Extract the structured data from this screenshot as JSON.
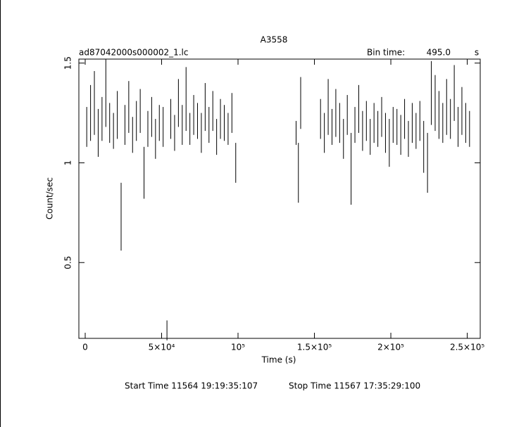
{
  "chart_data": {
    "type": "errorbar",
    "title": "A3558",
    "file_label": "ad87042000s000002_1.lc",
    "bin_time_label": "Bin time:",
    "bin_time": "495.0",
    "bin_time_unit": "s",
    "xlabel": "Time (s)",
    "ylabel": "Count/sec",
    "start_time": "Start Time 11564 19:19:35:107",
    "stop_time": "Stop Time 11567 17:35:29:100",
    "color": "#000000",
    "xlim": [
      -4150,
      258500
    ],
    "ylim": [
      0.12,
      1.52
    ],
    "xticks": [
      0,
      {
        "value": 50000,
        "label": "5×10⁴"
      },
      {
        "value": 100000,
        "label": "10⁵"
      },
      {
        "value": 150000,
        "label": "1.5×10⁵"
      },
      {
        "value": 200000,
        "label": "2×10⁵"
      },
      {
        "value": 250000,
        "label": "2.5×10⁵"
      }
    ],
    "yticks": [
      0.5,
      1,
      1.5
    ],
    "x": [
      1000,
      3500,
      6000,
      8500,
      11000,
      13500,
      16000,
      18500,
      21000,
      23500,
      26000,
      28500,
      31000,
      33500,
      36000,
      38500,
      41000,
      43500,
      46000,
      48500,
      51000,
      53500,
      56000,
      58500,
      61000,
      63500,
      66000,
      68500,
      71000,
      73500,
      76000,
      78500,
      81000,
      83500,
      86000,
      88500,
      91000,
      93500,
      96000,
      98500,
      138000,
      139500,
      141000,
      154000,
      156500,
      159000,
      161500,
      164000,
      166500,
      169000,
      171500,
      174000,
      176500,
      179000,
      181500,
      184000,
      186500,
      189000,
      191500,
      194000,
      196500,
      199000,
      201500,
      204000,
      206500,
      209000,
      211500,
      214000,
      216500,
      219000,
      221500,
      224000,
      226500,
      229000,
      231500,
      234000,
      236500,
      239000,
      241500,
      244000,
      246500,
      249000,
      251500
    ],
    "values": [
      1.18,
      1.25,
      1.3,
      1.15,
      1.22,
      1.35,
      1.2,
      1.16,
      1.24,
      0.73,
      1.19,
      1.28,
      1.14,
      1.21,
      1.26,
      0.95,
      1.17,
      1.23,
      1.12,
      1.2,
      1.18,
      0.16,
      1.22,
      1.15,
      1.3,
      1.19,
      1.32,
      1.17,
      1.24,
      1.21,
      1.15,
      1.28,
      1.19,
      1.26,
      1.13,
      1.22,
      1.2,
      1.17,
      1.25,
      1.0,
      1.15,
      0.95,
      1.3,
      1.22,
      1.15,
      1.28,
      1.18,
      1.25,
      1.2,
      1.12,
      1.24,
      0.97,
      1.19,
      1.27,
      1.16,
      1.21,
      1.13,
      1.2,
      1.17,
      1.23,
      1.15,
      1.1,
      1.19,
      1.18,
      1.14,
      1.22,
      1.12,
      1.2,
      1.16,
      1.21,
      1.08,
      1.0,
      1.35,
      1.3,
      1.24,
      1.2,
      1.28,
      1.22,
      1.35,
      1.18,
      1.26,
      1.2,
      1.17
    ],
    "errors": [
      0.1,
      0.14,
      0.16,
      0.12,
      0.11,
      0.17,
      0.1,
      0.09,
      0.12,
      0.17,
      0.1,
      0.13,
      0.09,
      0.1,
      0.11,
      0.13,
      0.09,
      0.1,
      0.1,
      0.09,
      0.1,
      0.05,
      0.1,
      0.09,
      0.12,
      0.1,
      0.16,
      0.08,
      0.1,
      0.09,
      0.1,
      0.12,
      0.09,
      0.1,
      0.09,
      0.1,
      0.09,
      0.08,
      0.1,
      0.1,
      0.06,
      0.15,
      0.13,
      0.1,
      0.1,
      0.14,
      0.09,
      0.12,
      0.1,
      0.1,
      0.1,
      0.18,
      0.09,
      0.12,
      0.1,
      0.1,
      0.09,
      0.1,
      0.09,
      0.1,
      0.1,
      0.12,
      0.09,
      0.09,
      0.1,
      0.1,
      0.09,
      0.1,
      0.09,
      0.1,
      0.13,
      0.15,
      0.16,
      0.14,
      0.12,
      0.1,
      0.14,
      0.1,
      0.14,
      0.1,
      0.12,
      0.1,
      0.09
    ]
  }
}
